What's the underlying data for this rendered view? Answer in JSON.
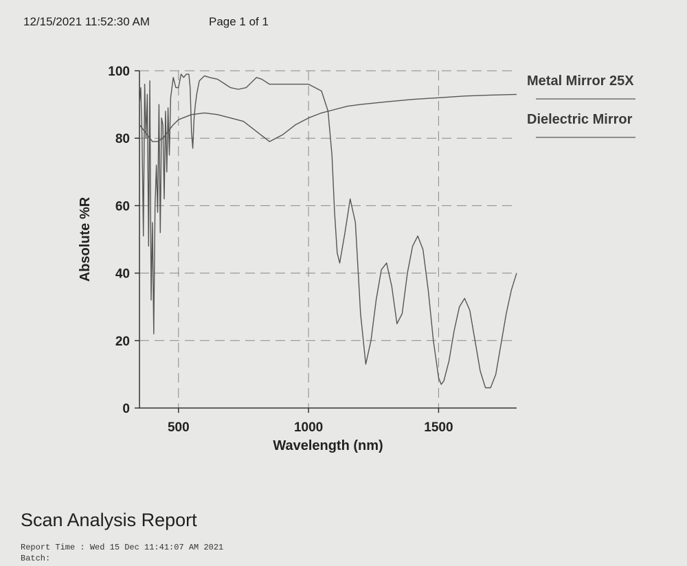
{
  "header": {
    "datetime": "12/15/2021 11:52:30 AM",
    "page": "Page 1 of 1"
  },
  "report": {
    "title": "Scan Analysis Report",
    "lines": [
      "Report Time : Wed 15 Dec 11:41:07 AM 2021",
      "Batch:"
    ]
  },
  "colors": {
    "line": "#555555",
    "grid": "#888888",
    "background": "#e8e9e6"
  },
  "chart_data": {
    "type": "line",
    "xlabel": "Wavelength (nm)",
    "ylabel": "Absolute %R",
    "xlim": [
      350,
      1800
    ],
    "ylim": [
      0,
      100
    ],
    "xticks": [
      500,
      1000,
      1500
    ],
    "yticks": [
      0,
      20,
      40,
      60,
      80,
      100
    ],
    "grid": true,
    "legend_position": "right",
    "series": [
      {
        "name": "Metal Mirror 25X",
        "x": [
          350,
          380,
          400,
          420,
          440,
          460,
          480,
          500,
          550,
          600,
          650,
          700,
          750,
          800,
          850,
          900,
          950,
          1000,
          1050,
          1100,
          1150,
          1200,
          1300,
          1400,
          1500,
          1600,
          1700,
          1800
        ],
        "y": [
          84,
          81,
          79,
          79,
          80,
          82,
          84,
          85.5,
          87,
          87.5,
          87,
          86,
          85,
          82,
          79,
          81,
          84,
          86,
          87.5,
          88.5,
          89.5,
          90,
          90.8,
          91.5,
          92,
          92.5,
          92.8,
          93
        ]
      },
      {
        "name": "Dielectric Mirror",
        "x": [
          350,
          355,
          360,
          365,
          370,
          375,
          380,
          385,
          390,
          395,
          400,
          405,
          410,
          415,
          420,
          425,
          430,
          435,
          440,
          445,
          450,
          455,
          460,
          465,
          470,
          480,
          490,
          500,
          505,
          510,
          520,
          530,
          540,
          545,
          550,
          555,
          560,
          565,
          570,
          580,
          600,
          620,
          650,
          680,
          700,
          730,
          760,
          800,
          820,
          850,
          880,
          900,
          950,
          1000,
          1050,
          1075,
          1090,
          1100,
          1110,
          1120,
          1140,
          1160,
          1180,
          1200,
          1220,
          1240,
          1260,
          1280,
          1300,
          1320,
          1340,
          1360,
          1380,
          1400,
          1420,
          1440,
          1460,
          1480,
          1500,
          1510,
          1520,
          1540,
          1560,
          1580,
          1600,
          1620,
          1640,
          1660,
          1680,
          1700,
          1720,
          1740,
          1760,
          1780,
          1800
        ],
        "y": [
          90,
          95,
          80,
          51,
          96,
          80,
          93,
          48,
          97,
          32,
          55,
          22,
          60,
          72,
          58,
          90,
          52,
          86,
          84,
          62,
          88,
          70,
          89,
          75,
          92,
          98,
          95,
          95,
          97,
          99,
          98,
          99,
          99,
          95,
          82,
          77,
          86,
          90,
          93,
          97,
          98.5,
          98,
          97.5,
          96,
          95,
          94.5,
          95,
          98,
          97.5,
          96,
          96,
          96,
          96,
          96,
          94,
          88,
          75,
          58,
          46,
          43,
          52,
          62,
          55,
          28,
          13,
          20,
          32,
          41,
          43,
          36,
          25,
          28,
          40,
          48,
          51,
          47,
          35,
          20,
          9,
          7,
          8,
          14,
          23,
          30,
          32.5,
          29,
          20,
          11,
          6,
          6,
          10,
          19,
          28,
          35,
          40
        ]
      }
    ]
  }
}
